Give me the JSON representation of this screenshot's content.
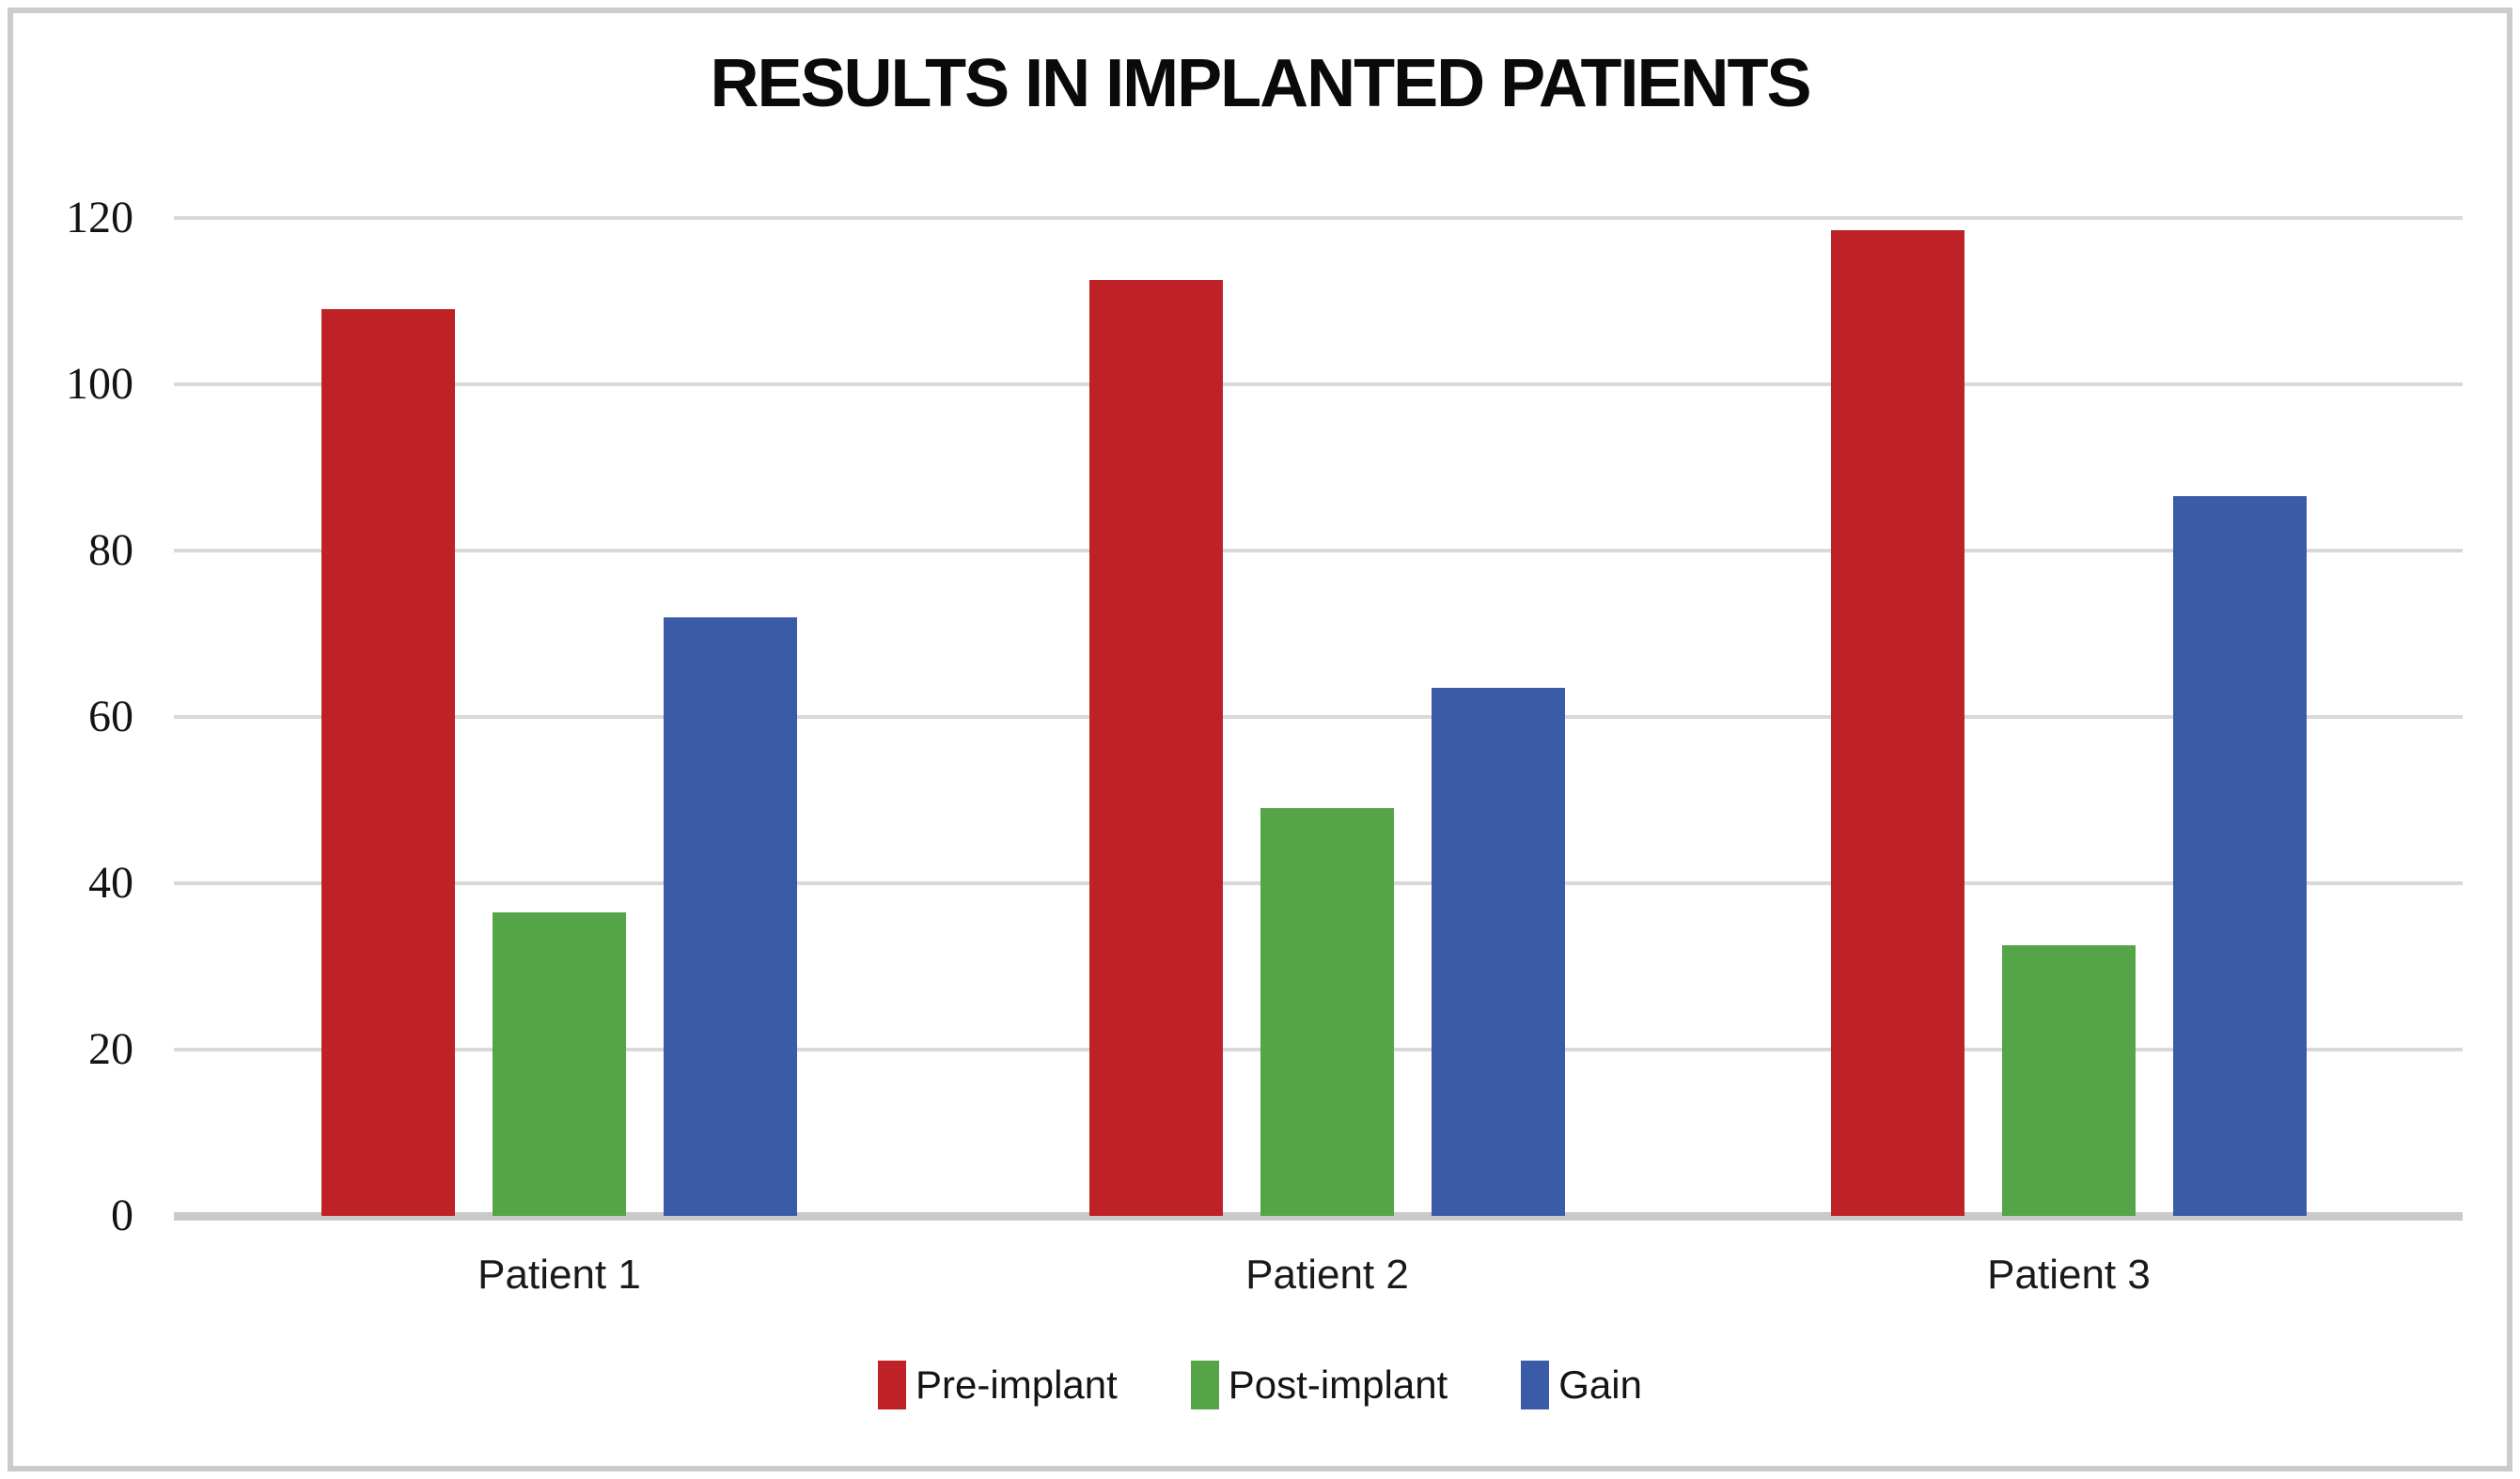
{
  "figure": {
    "background": "#ffffff",
    "border_color": "#c9cbcd"
  },
  "chart_data": {
    "type": "bar",
    "title": "RESULTS IN IMPLANTED PATIENTS",
    "categories": [
      "Patient 1",
      "Patient 2",
      "Patient 3"
    ],
    "series": [
      {
        "name": "Pre-implant",
        "color": "#be2126",
        "values": [
          109,
          112.5,
          118.5
        ]
      },
      {
        "name": "Post-implant",
        "color": "#55a447",
        "values": [
          36.5,
          49,
          32.5
        ]
      },
      {
        "name": "Gain",
        "color": "#3b5ba9",
        "values": [
          72,
          63.5,
          86.5
        ]
      }
    ],
    "y_axis": {
      "min": 0,
      "max": 120,
      "step": 20,
      "tick_labels": [
        "120",
        "100",
        "80",
        "60",
        "40",
        "20",
        "0"
      ]
    },
    "xlabel": "",
    "ylabel": "",
    "grid": true,
    "legend_position": "bottom",
    "gridline_color": "#d9d9d9",
    "baseline_color": "#c9caca",
    "title_color": "#0a0a0a",
    "tick_color": "#141414"
  }
}
